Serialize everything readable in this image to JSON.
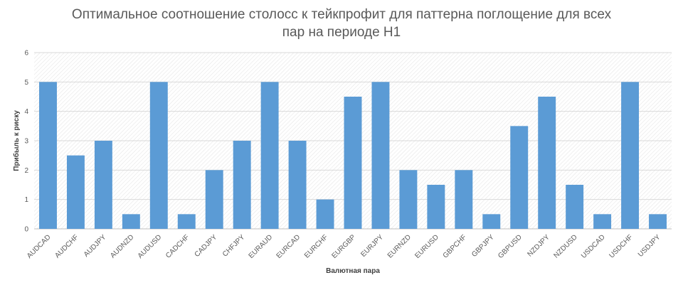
{
  "chart_data": {
    "type": "bar",
    "title_line1": "Оптимальное соотношение столосс к тейкпрофит для паттерна поглощение для всех",
    "title_line2": "пар на периоде Н1",
    "xlabel": "Валютная пара",
    "ylabel": "Прибыль к риску",
    "ylim": [
      0,
      6
    ],
    "yticks": [
      "0",
      "1",
      "2",
      "3",
      "4",
      "5",
      "6"
    ],
    "grid": true,
    "bar_color": "#5B9BD5",
    "categories": [
      "AUDCAD",
      "AUDCHF",
      "AUDJPY",
      "AUDNZD",
      "AUDUSD",
      "CADCHF",
      "CADJPY",
      "CHFJPY",
      "EURAUD",
      "EURCAD",
      "EURCHF",
      "EURGBP",
      "EURJPY",
      "EURNZD",
      "EURUSD",
      "GBPCHF",
      "GBPJPY",
      "GBPUSD",
      "NZDJPY",
      "NZDUSD",
      "USDCAD",
      "USDCHF",
      "USDJPY"
    ],
    "values": [
      5,
      2.5,
      3,
      0.5,
      5,
      0.5,
      2,
      3,
      5,
      3,
      1,
      4.5,
      5,
      2,
      1.5,
      2,
      0.5,
      3.5,
      4.5,
      1.5,
      0.5,
      5,
      0.5
    ]
  }
}
